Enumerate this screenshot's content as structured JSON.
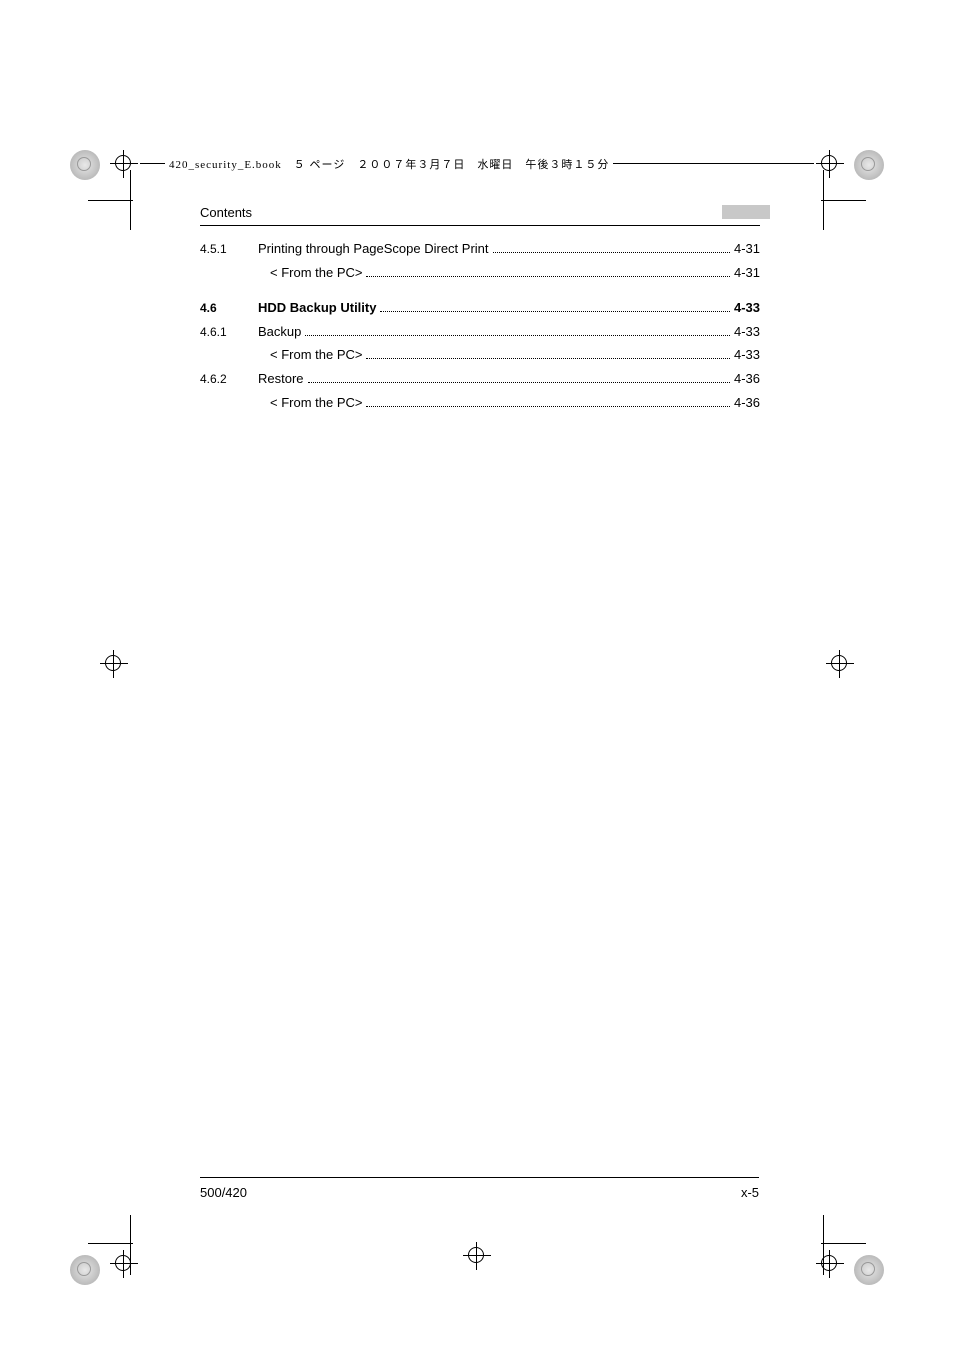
{
  "header": {
    "file_label": "420_security_E.book　５ ページ　２００７年３月７日　水曜日　午後３時１５分"
  },
  "contents_title": "Contents",
  "toc": {
    "r1_num": "4.5.1",
    "r1_text": "Printing through PageScope Direct Print",
    "r1_page": "4-31",
    "r1a_text": "< From the PC>",
    "r1a_page": "4-31",
    "r2_num": "4.6",
    "r2_text": "HDD Backup Utility",
    "r2_page": "4-33",
    "r3_num": "4.6.1",
    "r3_text": "Backup",
    "r3_page": "4-33",
    "r3a_text": "< From the PC>",
    "r3a_page": "4-33",
    "r4_num": "4.6.2",
    "r4_text": "Restore",
    "r4_page": "4-36",
    "r4a_text": "< From the PC>",
    "r4a_page": "4-36"
  },
  "footer": {
    "left": "500/420",
    "right": "x-5"
  },
  "colors": {
    "text": "#000000",
    "gray_box": "#c8c8c8",
    "bg": "#ffffff"
  }
}
